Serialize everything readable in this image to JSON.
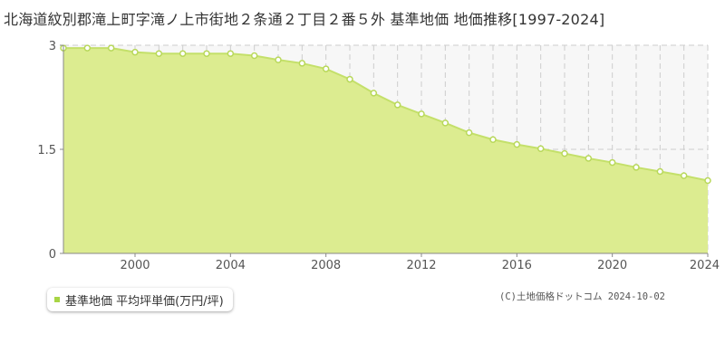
{
  "title": "北海道紋別郡滝上町字滝ノ上市街地２条通２丁目２番５外 基準地価 地価推移[1997-2024]",
  "legend": {
    "label": "基準地価 平均坪単価(万円/坪)"
  },
  "copyright": "(C)土地価格ドットコム 2024-10-02",
  "colors": {
    "fill": "#dcec90",
    "line": "#c4e06a",
    "marker_stroke": "#b8d85a",
    "legend_swatch": "#a8d545",
    "grid": "#cccccc",
    "plot_bg": "#f7f7f7"
  },
  "chart_data": {
    "type": "area",
    "title": "北海道紋別郡滝上町字滝ノ上市街地２条通２丁目２番５外 基準地価 地価推移[1997-2024]",
    "xlabel": "",
    "ylabel": "",
    "xlim": [
      1997,
      2024
    ],
    "ylim": [
      0,
      3
    ],
    "yticks": [
      0,
      1.5,
      3
    ],
    "ytick_labels": [
      "0",
      "1.5",
      "3"
    ],
    "xticks": [
      2000,
      2004,
      2008,
      2012,
      2016,
      2020,
      2024
    ],
    "xtick_labels": [
      "2000",
      "2004",
      "2008",
      "2012",
      "2016",
      "2020",
      "2024"
    ],
    "grid": true,
    "legend_position": "bottom-left",
    "series": [
      {
        "name": "基準地価 平均坪単価(万円/坪)",
        "x": [
          1997,
          1998,
          1999,
          2000,
          2001,
          2002,
          2003,
          2004,
          2005,
          2006,
          2007,
          2008,
          2009,
          2010,
          2011,
          2012,
          2013,
          2014,
          2015,
          2016,
          2017,
          2018,
          2019,
          2020,
          2021,
          2022,
          2023,
          2024
        ],
        "values": [
          2.96,
          2.96,
          2.96,
          2.9,
          2.88,
          2.88,
          2.88,
          2.88,
          2.85,
          2.79,
          2.74,
          2.66,
          2.51,
          2.31,
          2.14,
          2.01,
          1.88,
          1.74,
          1.64,
          1.57,
          1.51,
          1.44,
          1.37,
          1.31,
          1.24,
          1.18,
          1.12,
          1.05
        ]
      }
    ]
  }
}
